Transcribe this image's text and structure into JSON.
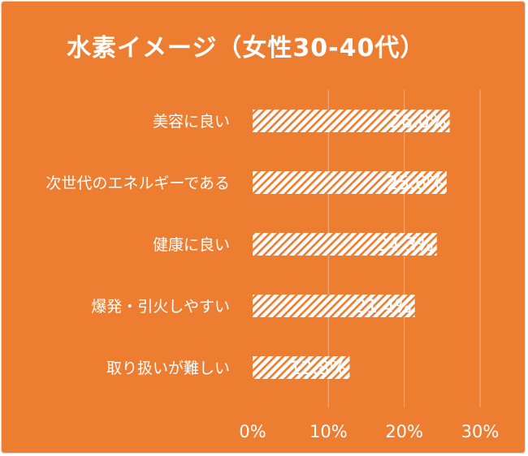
{
  "chart_data": {
    "type": "bar",
    "orientation": "horizontal",
    "title": "水素イメージ（女性30-40代）",
    "categories": [
      "美容に良い",
      "次世代のエネルギーである",
      "健康に良い",
      "爆発・引火しやすい",
      "取り扱いが難しい"
    ],
    "values": [
      26.0,
      25.6,
      24.3,
      21.4,
      12.8
    ],
    "value_labels": [
      "26.0%",
      "25.6%",
      "24.3%",
      "21.4%",
      "12.8%"
    ],
    "x_ticks": [
      "0%",
      "10%",
      "20%",
      "30%"
    ],
    "xlim": [
      0,
      30
    ],
    "grid": true,
    "colors": {
      "background": "#ED7D31",
      "bar": "#ffffff",
      "bar_hatch": "#ED7D31",
      "text": "#ffffff"
    }
  }
}
